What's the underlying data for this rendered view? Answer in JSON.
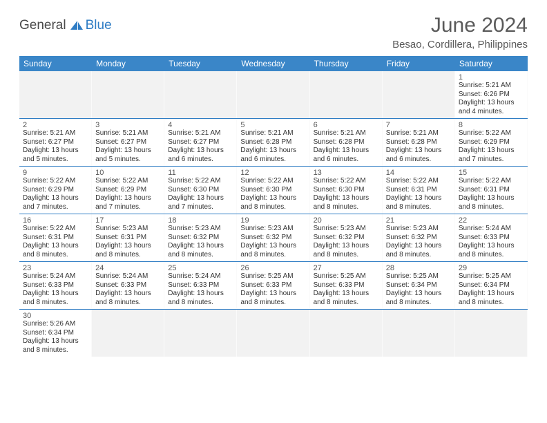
{
  "logo": {
    "part1": "General",
    "part2": "Blue",
    "sail_color": "#2e7cc4"
  },
  "title": "June 2024",
  "location": "Besao, Cordillera, Philippines",
  "colors": {
    "header_bg": "#3a86c8",
    "header_text": "#ffffff",
    "week_divider": "#2e7cc4",
    "empty_bg": "#f2f2f2",
    "text": "#333333",
    "muted": "#555555"
  },
  "day_headers": [
    "Sunday",
    "Monday",
    "Tuesday",
    "Wednesday",
    "Thursday",
    "Friday",
    "Saturday"
  ],
  "weeks": [
    [
      {
        "empty": true
      },
      {
        "empty": true
      },
      {
        "empty": true
      },
      {
        "empty": true
      },
      {
        "empty": true
      },
      {
        "empty": true
      },
      {
        "num": "1",
        "sunrise": "Sunrise: 5:21 AM",
        "sunset": "Sunset: 6:26 PM",
        "daylight": "Daylight: 13 hours and 4 minutes."
      }
    ],
    [
      {
        "num": "2",
        "sunrise": "Sunrise: 5:21 AM",
        "sunset": "Sunset: 6:27 PM",
        "daylight": "Daylight: 13 hours and 5 minutes."
      },
      {
        "num": "3",
        "sunrise": "Sunrise: 5:21 AM",
        "sunset": "Sunset: 6:27 PM",
        "daylight": "Daylight: 13 hours and 5 minutes."
      },
      {
        "num": "4",
        "sunrise": "Sunrise: 5:21 AM",
        "sunset": "Sunset: 6:27 PM",
        "daylight": "Daylight: 13 hours and 6 minutes."
      },
      {
        "num": "5",
        "sunrise": "Sunrise: 5:21 AM",
        "sunset": "Sunset: 6:28 PM",
        "daylight": "Daylight: 13 hours and 6 minutes."
      },
      {
        "num": "6",
        "sunrise": "Sunrise: 5:21 AM",
        "sunset": "Sunset: 6:28 PM",
        "daylight": "Daylight: 13 hours and 6 minutes."
      },
      {
        "num": "7",
        "sunrise": "Sunrise: 5:21 AM",
        "sunset": "Sunset: 6:28 PM",
        "daylight": "Daylight: 13 hours and 6 minutes."
      },
      {
        "num": "8",
        "sunrise": "Sunrise: 5:22 AM",
        "sunset": "Sunset: 6:29 PM",
        "daylight": "Daylight: 13 hours and 7 minutes."
      }
    ],
    [
      {
        "num": "9",
        "sunrise": "Sunrise: 5:22 AM",
        "sunset": "Sunset: 6:29 PM",
        "daylight": "Daylight: 13 hours and 7 minutes."
      },
      {
        "num": "10",
        "sunrise": "Sunrise: 5:22 AM",
        "sunset": "Sunset: 6:29 PM",
        "daylight": "Daylight: 13 hours and 7 minutes."
      },
      {
        "num": "11",
        "sunrise": "Sunrise: 5:22 AM",
        "sunset": "Sunset: 6:30 PM",
        "daylight": "Daylight: 13 hours and 7 minutes."
      },
      {
        "num": "12",
        "sunrise": "Sunrise: 5:22 AM",
        "sunset": "Sunset: 6:30 PM",
        "daylight": "Daylight: 13 hours and 8 minutes."
      },
      {
        "num": "13",
        "sunrise": "Sunrise: 5:22 AM",
        "sunset": "Sunset: 6:30 PM",
        "daylight": "Daylight: 13 hours and 8 minutes."
      },
      {
        "num": "14",
        "sunrise": "Sunrise: 5:22 AM",
        "sunset": "Sunset: 6:31 PM",
        "daylight": "Daylight: 13 hours and 8 minutes."
      },
      {
        "num": "15",
        "sunrise": "Sunrise: 5:22 AM",
        "sunset": "Sunset: 6:31 PM",
        "daylight": "Daylight: 13 hours and 8 minutes."
      }
    ],
    [
      {
        "num": "16",
        "sunrise": "Sunrise: 5:22 AM",
        "sunset": "Sunset: 6:31 PM",
        "daylight": "Daylight: 13 hours and 8 minutes."
      },
      {
        "num": "17",
        "sunrise": "Sunrise: 5:23 AM",
        "sunset": "Sunset: 6:31 PM",
        "daylight": "Daylight: 13 hours and 8 minutes."
      },
      {
        "num": "18",
        "sunrise": "Sunrise: 5:23 AM",
        "sunset": "Sunset: 6:32 PM",
        "daylight": "Daylight: 13 hours and 8 minutes."
      },
      {
        "num": "19",
        "sunrise": "Sunrise: 5:23 AM",
        "sunset": "Sunset: 6:32 PM",
        "daylight": "Daylight: 13 hours and 8 minutes."
      },
      {
        "num": "20",
        "sunrise": "Sunrise: 5:23 AM",
        "sunset": "Sunset: 6:32 PM",
        "daylight": "Daylight: 13 hours and 8 minutes."
      },
      {
        "num": "21",
        "sunrise": "Sunrise: 5:23 AM",
        "sunset": "Sunset: 6:32 PM",
        "daylight": "Daylight: 13 hours and 8 minutes."
      },
      {
        "num": "22",
        "sunrise": "Sunrise: 5:24 AM",
        "sunset": "Sunset: 6:33 PM",
        "daylight": "Daylight: 13 hours and 8 minutes."
      }
    ],
    [
      {
        "num": "23",
        "sunrise": "Sunrise: 5:24 AM",
        "sunset": "Sunset: 6:33 PM",
        "daylight": "Daylight: 13 hours and 8 minutes."
      },
      {
        "num": "24",
        "sunrise": "Sunrise: 5:24 AM",
        "sunset": "Sunset: 6:33 PM",
        "daylight": "Daylight: 13 hours and 8 minutes."
      },
      {
        "num": "25",
        "sunrise": "Sunrise: 5:24 AM",
        "sunset": "Sunset: 6:33 PM",
        "daylight": "Daylight: 13 hours and 8 minutes."
      },
      {
        "num": "26",
        "sunrise": "Sunrise: 5:25 AM",
        "sunset": "Sunset: 6:33 PM",
        "daylight": "Daylight: 13 hours and 8 minutes."
      },
      {
        "num": "27",
        "sunrise": "Sunrise: 5:25 AM",
        "sunset": "Sunset: 6:33 PM",
        "daylight": "Daylight: 13 hours and 8 minutes."
      },
      {
        "num": "28",
        "sunrise": "Sunrise: 5:25 AM",
        "sunset": "Sunset: 6:34 PM",
        "daylight": "Daylight: 13 hours and 8 minutes."
      },
      {
        "num": "29",
        "sunrise": "Sunrise: 5:25 AM",
        "sunset": "Sunset: 6:34 PM",
        "daylight": "Daylight: 13 hours and 8 minutes."
      }
    ],
    [
      {
        "num": "30",
        "sunrise": "Sunrise: 5:26 AM",
        "sunset": "Sunset: 6:34 PM",
        "daylight": "Daylight: 13 hours and 8 minutes."
      },
      {
        "empty": true
      },
      {
        "empty": true
      },
      {
        "empty": true
      },
      {
        "empty": true
      },
      {
        "empty": true
      },
      {
        "empty": true
      }
    ]
  ]
}
